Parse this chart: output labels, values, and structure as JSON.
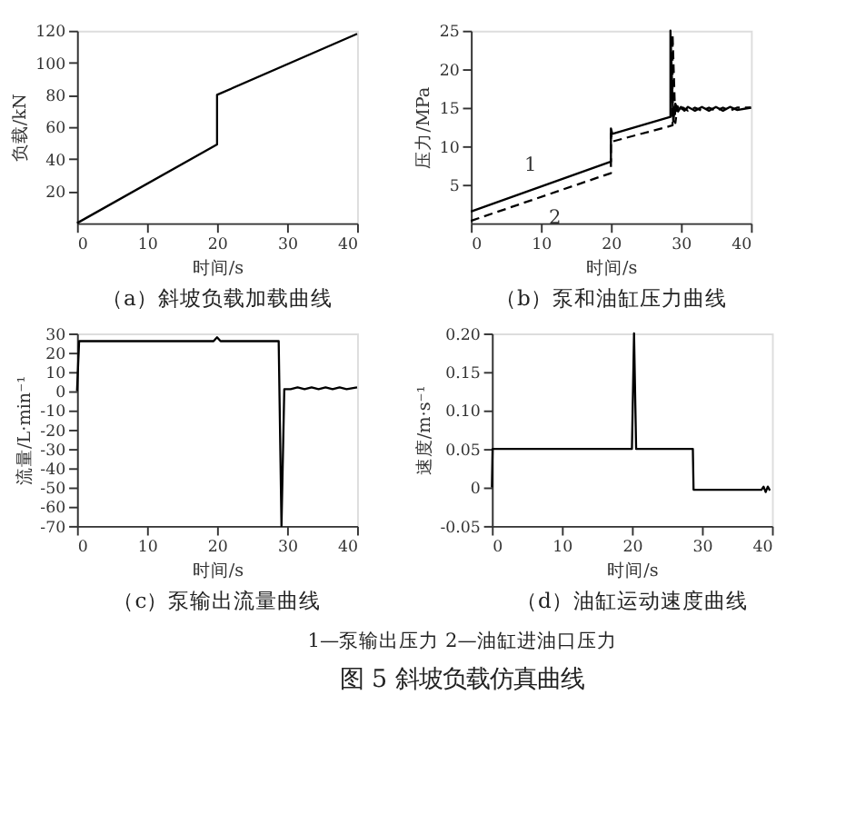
{
  "chart_data": [
    {
      "type": "line",
      "title": "（a）斜坡负载加载曲线",
      "xlabel": "时间/s",
      "ylabel": "负载/kN",
      "xlim": [
        0,
        40
      ],
      "xticks": [
        0,
        10,
        20,
        30,
        40
      ],
      "ylim": [
        0,
        120
      ],
      "yticks": [
        20,
        40,
        60,
        80,
        100,
        120
      ],
      "grid": false,
      "series": [
        {
          "color": "#000000",
          "line_style": "solid",
          "x": [
            0,
            20,
            20,
            40
          ],
          "values": [
            0,
            49,
            80,
            118
          ]
        }
      ]
    },
    {
      "type": "line",
      "title": "（b）泵和油缸压力曲线",
      "xlabel": "时间/s",
      "ylabel": "压力/MPa",
      "xlim": [
        0,
        40
      ],
      "xticks": [
        0,
        10,
        20,
        30,
        40
      ],
      "ylim": [
        0,
        25
      ],
      "yticks": [
        5,
        10,
        15,
        20,
        25
      ],
      "grid": false,
      "series": [
        {
          "name": "1",
          "color": "#000000",
          "line_style": "solid",
          "x": [
            0,
            20,
            20,
            20.2,
            28.5,
            28.5,
            28.9,
            29.2,
            29.6,
            30.0,
            30.5,
            31,
            32,
            33,
            34,
            35,
            36,
            37,
            38,
            40
          ],
          "values": [
            1.5,
            8,
            12.3,
            11.6,
            13.8,
            25,
            13.2,
            15.5,
            14.5,
            15.1,
            14.6,
            15.1,
            14.6,
            15.1,
            14.6,
            15.1,
            14.6,
            15.1,
            14.7,
            15
          ]
        },
        {
          "name": "2",
          "color": "#000000",
          "line_style": "dashed",
          "x": [
            0,
            20,
            20,
            20.2,
            28.8,
            28.8,
            29.2,
            29.5,
            29.9,
            30.3,
            31,
            32,
            33,
            34,
            35,
            36,
            37,
            38,
            40
          ],
          "values": [
            0.3,
            6.5,
            11.6,
            10.6,
            12.7,
            24.5,
            13,
            15.2,
            14.5,
            15,
            14.6,
            15,
            14.6,
            15,
            14.6,
            15,
            14.6,
            15,
            15
          ]
        }
      ]
    },
    {
      "type": "line",
      "title": "（c）泵输出流量曲线",
      "xlabel": "时间/s",
      "ylabel": "流量/L·min⁻¹",
      "xlim": [
        0,
        40
      ],
      "xticks": [
        0,
        10,
        20,
        30,
        40
      ],
      "ylim": [
        -70,
        30
      ],
      "yticks": [
        -70,
        -60,
        -50,
        -40,
        -30,
        -20,
        -10,
        0,
        10,
        20,
        30
      ],
      "grid": false,
      "series": [
        {
          "color": "#000000",
          "line_style": "solid",
          "x": [
            0,
            0.3,
            19.5,
            20,
            20.5,
            28.8,
            29.2,
            29.6,
            30.5,
            31.5,
            32.5,
            33.5,
            34.5,
            35.5,
            36.5,
            37.5,
            38.5,
            40
          ],
          "values": [
            0,
            26,
            26,
            28,
            26,
            26,
            -70,
            1,
            1,
            2,
            1,
            2,
            1,
            2,
            1,
            2,
            1,
            2
          ]
        }
      ]
    },
    {
      "type": "line",
      "title": "（d）油缸运动速度曲线",
      "xlabel": "时间/s",
      "ylabel": "速度/m·s⁻¹",
      "xlim": [
        0,
        40
      ],
      "xticks": [
        0,
        10,
        20,
        30,
        40
      ],
      "ylim": [
        -0.05,
        0.2
      ],
      "yticks": [
        {
          "value": -0.05,
          "label": "-0.05"
        },
        0,
        {
          "value": 0.05,
          "label": "0.05"
        },
        {
          "value": 0.1,
          "label": "0.10"
        },
        {
          "value": 0.15,
          "label": "0.15"
        },
        {
          "value": 0.2,
          "label": "0.20"
        }
      ],
      "grid": false,
      "series": [
        {
          "color": "#000000",
          "line_style": "solid",
          "x": [
            0,
            0.1,
            20,
            20.3,
            20.6,
            28.7,
            28.8,
            38.5,
            38.8,
            39.1,
            39.4,
            39.7
          ],
          "values": [
            0,
            0.05,
            0.05,
            0.2,
            0.05,
            0.05,
            -0.003,
            -0.003,
            0.001,
            -0.006,
            0.001,
            -0.004
          ]
        }
      ]
    },
    {
      "type": "other",
      "title": "图 5 斜坡负载仿真曲线",
      "annotations": [
        "1—泵输出压力 2—油缸进油口压力"
      ]
    }
  ]
}
